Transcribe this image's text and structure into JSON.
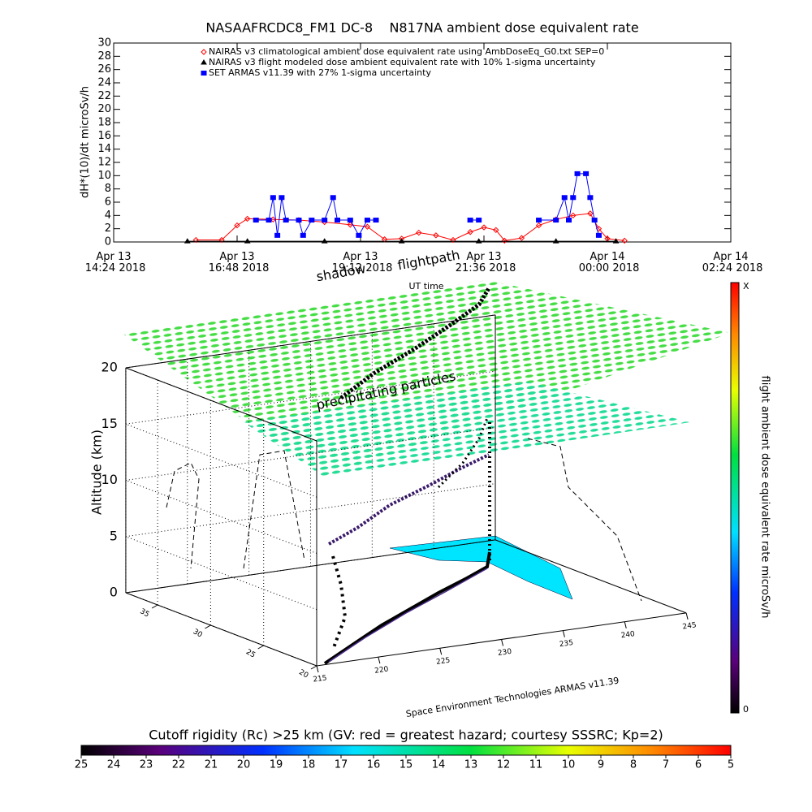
{
  "chart_data": [
    {
      "type": "line",
      "title": "NASAAFRCDC8_FM1 DC-8    N817NA ambient dose equivalent rate",
      "ylabel": "dH*(10)/dt microSv/h",
      "xlabel": "UT time",
      "xlim": [
        "2018-04-13T14:24",
        "2018-04-14T02:24"
      ],
      "xticks": [
        {
          "value": "2018-04-13T14:24",
          "label": "Apr 13 14:24 2018"
        },
        {
          "value": "2018-04-13T16:48",
          "label": "Apr 13 16:48 2018"
        },
        {
          "value": "2018-04-13T19:12",
          "label": "Apr 13 19:12 2018"
        },
        {
          "value": "2018-04-13T21:36",
          "label": "Apr 13 21:36 2018"
        },
        {
          "value": "2018-04-14T00:00",
          "label": "Apr 14 00:00 2018"
        },
        {
          "value": "2018-04-14T02:24",
          "label": "Apr 14 02:24 2018"
        }
      ],
      "ylim": [
        0,
        30
      ],
      "yticks": [
        0,
        2,
        4,
        6,
        8,
        10,
        12,
        14,
        16,
        18,
        20,
        22,
        24,
        26,
        28,
        30
      ],
      "series": [
        {
          "name": "NAIRAS v3 climatological ambient dose equivalent rate using AmbDoseEq_G0.txt SEP=0",
          "color": "#ff0000",
          "marker": "diamond",
          "x": [
            "2018-04-13T16:00",
            "2018-04-13T16:30",
            "2018-04-13T16:48",
            "2018-04-13T17:00",
            "2018-04-13T17:30",
            "2018-04-13T18:00",
            "2018-04-13T18:30",
            "2018-04-13T19:00",
            "2018-04-13T19:20",
            "2018-04-13T19:40",
            "2018-04-13T20:00",
            "2018-04-13T20:20",
            "2018-04-13T20:40",
            "2018-04-13T21:00",
            "2018-04-13T21:20",
            "2018-04-13T21:36",
            "2018-04-13T21:50",
            "2018-04-13T22:00",
            "2018-04-13T22:20",
            "2018-04-13T22:40",
            "2018-04-13T23:00",
            "2018-04-13T23:20",
            "2018-04-13T23:40",
            "2018-04-13T23:50",
            "2018-04-14T00:00",
            "2018-04-14T00:20"
          ],
          "values": [
            0.3,
            0.3,
            2.5,
            3.5,
            3.4,
            3.3,
            3.0,
            2.6,
            2.3,
            0.4,
            0.5,
            1.4,
            1.0,
            0.3,
            1.5,
            2.2,
            1.8,
            0.2,
            0.6,
            2.5,
            3.4,
            4.0,
            4.3,
            2.0,
            0.5,
            0.2
          ]
        },
        {
          "name": "NAIRAS v3 flight modeled dose ambient equivalent rate with 10% 1-sigma uncertainty",
          "color": "#000000",
          "marker": "triangle",
          "x": [
            "2018-04-13T15:50",
            "2018-04-13T17:00",
            "2018-04-13T18:30",
            "2018-04-13T20:00",
            "2018-04-13T21:30",
            "2018-04-13T23:00",
            "2018-04-14T00:10"
          ],
          "values": [
            0.1,
            0.1,
            0.1,
            0.1,
            0.1,
            0.1,
            0.1
          ]
        },
        {
          "name": "SET ARMAS v11.39 with 27% 1-sigma uncertainty",
          "color": "#0000ff",
          "marker": "square",
          "x": [
            "2018-04-13T17:10",
            "2018-04-13T17:25",
            "2018-04-13T17:30",
            "2018-04-13T17:35",
            "2018-04-13T17:40",
            "2018-04-13T17:45",
            "2018-04-13T18:00",
            "2018-04-13T18:05",
            "2018-04-13T18:15",
            "2018-04-13T18:30",
            "2018-04-13T18:40",
            "2018-04-13T18:45",
            "2018-04-13T19:00",
            "2018-04-13T19:10",
            "2018-04-13T19:20",
            "2018-04-13T19:30",
            "2018-04-13T20:30",
            "2018-04-13T21:20",
            "2018-04-13T21:30",
            "2018-04-13T22:00",
            "2018-04-13T22:40",
            "2018-04-13T23:00",
            "2018-04-13T23:10",
            "2018-04-13T23:15",
            "2018-04-13T23:20",
            "2018-04-13T23:25",
            "2018-04-13T23:35",
            "2018-04-13T23:40",
            "2018-04-13T23:45",
            "2018-04-13T23:50"
          ],
          "values": [
            3.3,
            3.3,
            6.7,
            1.0,
            6.7,
            3.3,
            3.3,
            1.0,
            3.3,
            3.3,
            6.7,
            3.3,
            3.3,
            1.0,
            3.3,
            3.3,
            null,
            3.3,
            3.3,
            null,
            3.3,
            3.3,
            6.7,
            3.3,
            6.7,
            10.3,
            10.3,
            6.7,
            3.3,
            1.0
          ]
        }
      ]
    },
    {
      "type": "3d",
      "zlabel": "Altitude (km)",
      "zlim": [
        0,
        20
      ],
      "zticks": [
        0,
        5,
        10,
        15,
        20
      ],
      "xlim": [
        215,
        245
      ],
      "xticks": [
        215,
        220,
        225,
        230,
        235,
        240,
        245
      ],
      "ylim": [
        20,
        38
      ],
      "yticks": [
        20,
        25,
        30,
        35
      ],
      "annotations": [
        "shadow",
        "flightpath",
        "precipitating particles",
        "Space Environment Technologies ARMAS v11.39"
      ],
      "colorbar": {
        "label": "flight ambient dose equivalent rate microSv/h",
        "top": "X",
        "bottom": "0"
      },
      "rigidity": {
        "label": "Cutoff rigidity (Rc) >25 km (GV: red = greatest hazard; courtesy SSSRC; Kp=2)",
        "lim": [
          25,
          5
        ],
        "ticks": [
          25,
          24,
          23,
          22,
          21,
          20,
          19,
          18,
          17,
          16,
          15,
          14,
          13,
          12,
          11,
          10,
          9,
          8,
          7,
          6,
          5
        ]
      }
    }
  ]
}
